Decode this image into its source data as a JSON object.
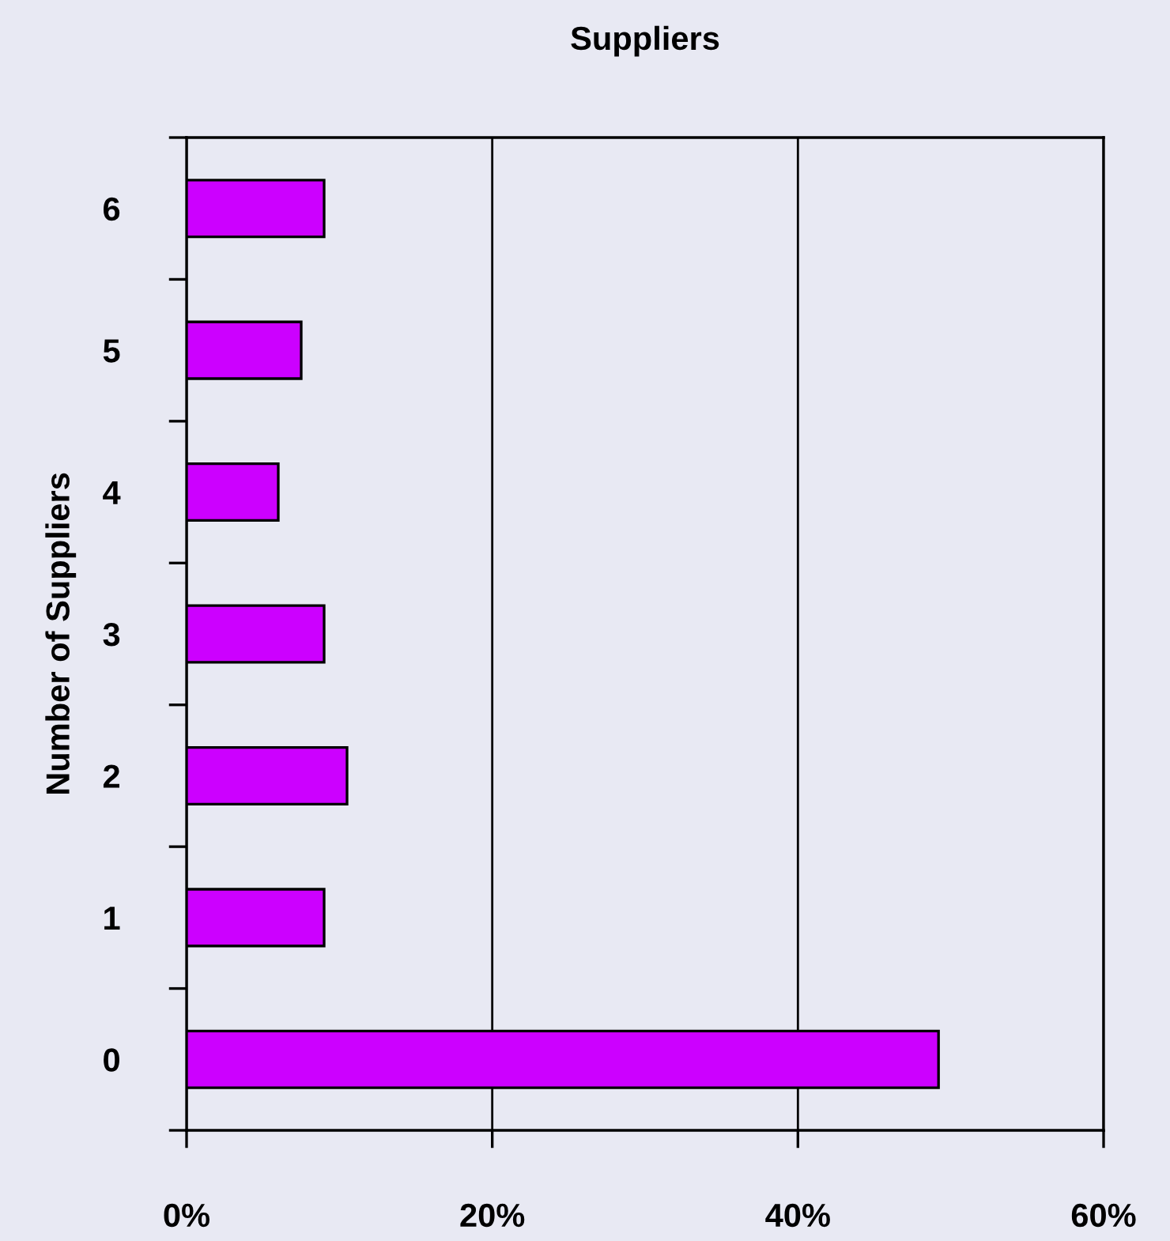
{
  "chart_data": {
    "type": "bar",
    "orientation": "horizontal",
    "title": "Suppliers",
    "ylabel": "Number of Suppliers",
    "categories": [
      "6",
      "5",
      "4",
      "3",
      "2",
      "1",
      "0"
    ],
    "values": [
      9,
      7.5,
      6,
      9,
      10.5,
      9,
      49.2
    ],
    "color": "#cc00ff",
    "xlim": [
      0,
      60
    ],
    "xticks": [
      {
        "value": 0,
        "label": "0%"
      },
      {
        "value": 20,
        "label": "20%"
      },
      {
        "value": 40,
        "label": "40%"
      },
      {
        "value": 60,
        "label": "60%"
      }
    ],
    "grid": "x",
    "legend": false
  }
}
